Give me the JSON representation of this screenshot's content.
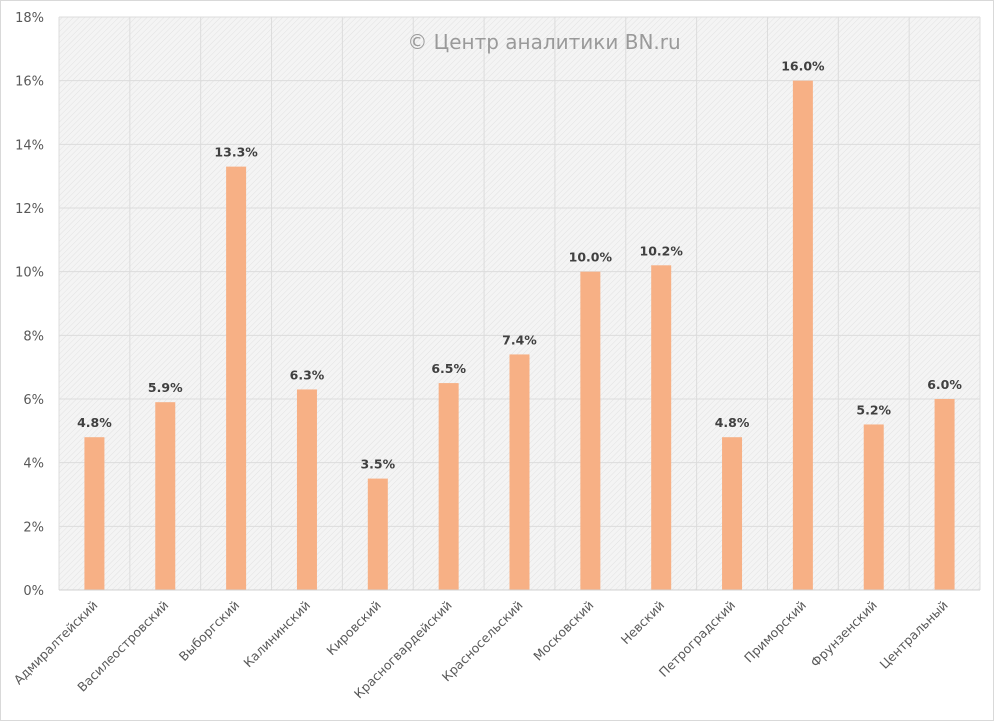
{
  "chart_data": {
    "type": "bar",
    "title": "",
    "watermark": "© Центр аналитики BN.ru",
    "xlabel": "",
    "ylabel": "",
    "ylim": [
      0,
      18
    ],
    "y_ticks": [
      0,
      2,
      4,
      6,
      8,
      10,
      12,
      14,
      16,
      18
    ],
    "y_tick_labels": [
      "0%",
      "2%",
      "4%",
      "6%",
      "8%",
      "10%",
      "12%",
      "14%",
      "16%",
      "18%"
    ],
    "grid": true,
    "legend": "none",
    "bar_color": "#f7b085",
    "categories": [
      "Адмиралтейский",
      "Василеостровский",
      "Выборгский",
      "Калининский",
      "Кировский",
      "Красногвардейский",
      "Красносельский",
      "Московский",
      "Невский",
      "Петроградский",
      "Приморский",
      "Фрунзенский",
      "Центральный"
    ],
    "values": [
      4.8,
      5.9,
      13.3,
      6.3,
      3.5,
      6.5,
      7.4,
      10.0,
      10.2,
      4.8,
      16.0,
      5.2,
      6.0
    ],
    "data_labels": [
      "4.8%",
      "5.9%",
      "13.3%",
      "6.3%",
      "3.5%",
      "6.5%",
      "7.4%",
      "10.0%",
      "10.2%",
      "4.8%",
      "16.0%",
      "5.2%",
      "6.0%"
    ]
  }
}
